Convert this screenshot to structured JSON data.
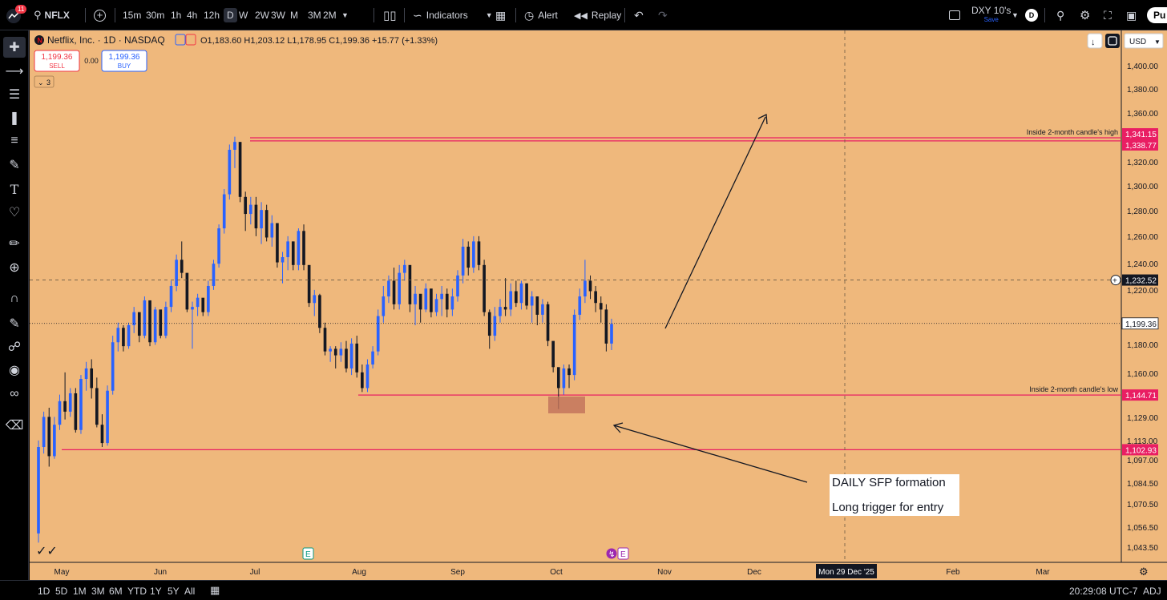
{
  "topbar": {
    "notif_count": "11",
    "symbol": "NFLX",
    "timeframes": [
      "15m",
      "30m",
      "1h",
      "4h",
      "12h",
      "D",
      "W",
      "2W",
      "3W",
      "M",
      "3M",
      "2M"
    ],
    "active_timeframe": "D",
    "indicators_label": "Indicators",
    "alert_label": "Alert",
    "replay_label": "Replay",
    "layout_name": "DXY 10's",
    "layout_sub": "Save",
    "layout_badge": "D",
    "publish_label": "Pu"
  },
  "legend": {
    "title": "Netflix, Inc. · 1D · NASDAQ",
    "ohlc": "O1,183.60 H1,203.12 L1,178.95 C1,199.36 +15.77 (+1.33%)",
    "sell_price": "1,199.36",
    "sell_label": "SELL",
    "spread": "0.00",
    "buy_price": "1,199.36",
    "buy_label": "BUY",
    "collapsed_count": "3"
  },
  "currency": "USD",
  "bottombar": {
    "ranges": [
      "1D",
      "5D",
      "1M",
      "3M",
      "6M",
      "YTD",
      "1Y",
      "5Y",
      "All"
    ],
    "time": "20:29:08 UTC-7",
    "adj": "ADJ"
  },
  "chart_data": {
    "type": "candlestick",
    "title": "Netflix, Inc. · 1D · NASDAQ",
    "x_ticks": [
      "May",
      "Jun",
      "Jul",
      "Aug",
      "Sep",
      "Oct",
      "Nov",
      "Dec",
      "Mon 29 Dec '25",
      "Feb",
      "Mar"
    ],
    "y_ticks": [
      "1,400.00",
      "1,380.00",
      "1,360.00",
      "1,320.00",
      "1,300.00",
      "1,280.00",
      "1,260.00",
      "1,240.00",
      "1,220.00",
      "1,180.00",
      "1,160.00",
      "1,129.00",
      "1,113.00",
      "1,097.00",
      "1,084.50",
      "1,070.50",
      "1,056.50",
      "1,043.50"
    ],
    "price_tags": [
      "1,341.15",
      "1,338.77",
      "1,232.52",
      "1,199.36",
      "1,144.71",
      "1,102.93"
    ],
    "levels": [
      {
        "price": 1341.15,
        "label": "Inside 2-month candle's high"
      },
      {
        "price": 1338.77,
        "label": ""
      },
      {
        "price": 1144.71,
        "label": "Inside 2-month candle's low"
      },
      {
        "price": 1102.93,
        "label": ""
      }
    ],
    "crosshair_price": 1232.52,
    "crosshair_date": "Mon 29 Dec '25",
    "last_price": 1199.36,
    "annotation_lines": [
      "DAILY SFP formation",
      "Long trigger for entry"
    ],
    "colors": {
      "background": "#efb87c",
      "up": "#2962ff",
      "down": "#131722",
      "level": "#e91e63"
    },
    "candles_ohlc": [
      [
        1039,
        1110,
        1032,
        1105
      ],
      [
        1105,
        1132,
        1100,
        1128
      ],
      [
        1128,
        1135,
        1090,
        1098
      ],
      [
        1098,
        1128,
        1096,
        1122
      ],
      [
        1122,
        1145,
        1118,
        1140
      ],
      [
        1140,
        1162,
        1126,
        1132
      ],
      [
        1132,
        1150,
        1128,
        1146
      ],
      [
        1146,
        1150,
        1116,
        1118
      ],
      [
        1118,
        1160,
        1115,
        1157
      ],
      [
        1157,
        1170,
        1148,
        1165
      ],
      [
        1165,
        1172,
        1142,
        1150
      ],
      [
        1150,
        1158,
        1120,
        1122
      ],
      [
        1122,
        1130,
        1105,
        1108
      ],
      [
        1108,
        1152,
        1106,
        1148
      ],
      [
        1148,
        1190,
        1145,
        1185
      ],
      [
        1185,
        1200,
        1178,
        1196
      ],
      [
        1196,
        1198,
        1178,
        1182
      ],
      [
        1182,
        1200,
        1180,
        1198
      ],
      [
        1198,
        1212,
        1192,
        1208
      ],
      [
        1208,
        1200,
        1185,
        1190
      ],
      [
        1190,
        1220,
        1188,
        1217
      ],
      [
        1217,
        1216,
        1182,
        1185
      ],
      [
        1185,
        1212,
        1183,
        1210
      ],
      [
        1210,
        1206,
        1188,
        1190
      ],
      [
        1190,
        1216,
        1188,
        1212
      ],
      [
        1212,
        1232,
        1208,
        1228
      ],
      [
        1228,
        1252,
        1224,
        1248
      ],
      [
        1248,
        1262,
        1234,
        1238
      ],
      [
        1238,
        1236,
        1208,
        1210
      ],
      [
        1210,
        1216,
        1180,
        1212
      ],
      [
        1212,
        1222,
        1205,
        1219
      ],
      [
        1219,
        1215,
        1205,
        1208
      ],
      [
        1208,
        1232,
        1205,
        1228
      ],
      [
        1228,
        1248,
        1225,
        1245
      ],
      [
        1245,
        1275,
        1242,
        1272
      ],
      [
        1272,
        1302,
        1268,
        1298
      ],
      [
        1298,
        1336,
        1294,
        1332
      ],
      [
        1332,
        1342,
        1318,
        1338
      ],
      [
        1338,
        1336,
        1292,
        1296
      ],
      [
        1296,
        1300,
        1270,
        1283
      ],
      [
        1283,
        1296,
        1275,
        1290
      ],
      [
        1290,
        1296,
        1266,
        1272
      ],
      [
        1272,
        1292,
        1260,
        1286
      ],
      [
        1286,
        1290,
        1262,
        1265
      ],
      [
        1265,
        1282,
        1258,
        1276
      ],
      [
        1276,
        1268,
        1242,
        1246
      ],
      [
        1246,
        1254,
        1230,
        1250
      ],
      [
        1250,
        1266,
        1240,
        1262
      ],
      [
        1262,
        1262,
        1240,
        1244
      ],
      [
        1244,
        1272,
        1240,
        1270
      ],
      [
        1270,
        1275,
        1240,
        1244
      ],
      [
        1244,
        1236,
        1212,
        1215
      ],
      [
        1215,
        1225,
        1205,
        1221
      ],
      [
        1221,
        1222,
        1192,
        1196
      ],
      [
        1196,
        1200,
        1175,
        1178
      ],
      [
        1178,
        1182,
        1170,
        1180
      ],
      [
        1180,
        1182,
        1165,
        1175
      ],
      [
        1175,
        1185,
        1170,
        1180
      ],
      [
        1180,
        1186,
        1162,
        1165
      ],
      [
        1165,
        1188,
        1160,
        1184
      ],
      [
        1184,
        1190,
        1158,
        1162
      ],
      [
        1162,
        1168,
        1147,
        1150
      ],
      [
        1150,
        1172,
        1147,
        1168
      ],
      [
        1168,
        1182,
        1165,
        1178
      ],
      [
        1178,
        1210,
        1175,
        1205
      ],
      [
        1205,
        1228,
        1200,
        1220
      ],
      [
        1220,
        1236,
        1215,
        1232
      ],
      [
        1232,
        1242,
        1210,
        1214
      ],
      [
        1214,
        1244,
        1210,
        1238
      ],
      [
        1238,
        1248,
        1232,
        1244
      ],
      [
        1244,
        1240,
        1208,
        1214
      ],
      [
        1214,
        1228,
        1198,
        1222
      ],
      [
        1222,
        1220,
        1200,
        1210
      ],
      [
        1210,
        1230,
        1208,
        1226
      ],
      [
        1226,
        1224,
        1204,
        1208
      ],
      [
        1208,
        1222,
        1205,
        1218
      ],
      [
        1218,
        1228,
        1205,
        1222
      ],
      [
        1222,
        1226,
        1204,
        1210
      ],
      [
        1210,
        1226,
        1205,
        1220
      ],
      [
        1220,
        1240,
        1216,
        1236
      ],
      [
        1236,
        1264,
        1230,
        1258
      ],
      [
        1258,
        1262,
        1236,
        1242
      ],
      [
        1242,
        1266,
        1238,
        1262
      ],
      [
        1262,
        1266,
        1240,
        1244
      ],
      [
        1244,
        1248,
        1205,
        1208
      ],
      [
        1208,
        1210,
        1180,
        1190
      ],
      [
        1190,
        1212,
        1186,
        1205
      ],
      [
        1205,
        1218,
        1200,
        1212
      ],
      [
        1212,
        1234,
        1205,
        1210
      ],
      [
        1210,
        1230,
        1205,
        1224
      ],
      [
        1224,
        1232,
        1212,
        1215
      ],
      [
        1215,
        1232,
        1210,
        1230
      ],
      [
        1230,
        1230,
        1210,
        1213
      ],
      [
        1213,
        1224,
        1200,
        1220
      ],
      [
        1220,
        1220,
        1198,
        1206
      ],
      [
        1206,
        1218,
        1200,
        1214
      ],
      [
        1214,
        1216,
        1182,
        1186
      ],
      [
        1186,
        1182,
        1162,
        1166
      ],
      [
        1166,
        1164,
        1134,
        1150
      ],
      [
        1150,
        1168,
        1145,
        1165
      ],
      [
        1165,
        1168,
        1150,
        1160
      ],
      [
        1160,
        1210,
        1156,
        1206
      ],
      [
        1206,
        1226,
        1202,
        1220
      ],
      [
        1220,
        1248,
        1215,
        1232
      ],
      [
        1232,
        1236,
        1218,
        1224
      ],
      [
        1224,
        1228,
        1208,
        1215
      ],
      [
        1215,
        1220,
        1200,
        1210
      ],
      [
        1210,
        1214,
        1178,
        1184
      ],
      [
        1184,
        1203,
        1179,
        1199
      ]
    ]
  }
}
